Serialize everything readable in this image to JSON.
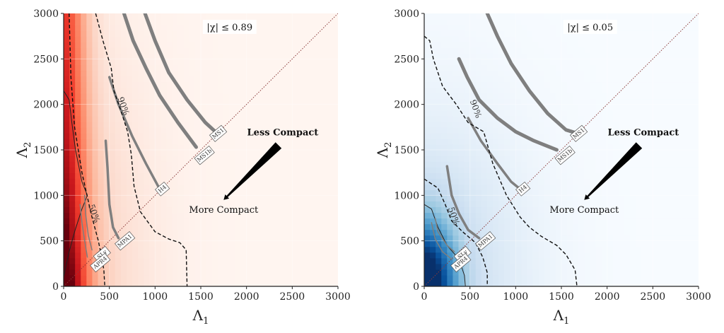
{
  "chart_data": [
    {
      "type": "heatmap",
      "colormap": "reds",
      "xlabel": "Λ",
      "xlabel_sub": "1",
      "ylabel": "Λ",
      "ylabel_sub": "2",
      "xlim": [
        0,
        3000
      ],
      "ylim": [
        0,
        3000
      ],
      "xticks": [
        "0",
        "500",
        "1000",
        "1500",
        "2000",
        "2500",
        "3000"
      ],
      "yticks": [
        "0",
        "500",
        "1000",
        "1500",
        "2000",
        "2500",
        "3000"
      ],
      "spin_label": "|χ| ≤ 0.89",
      "arrow_start_label": "Less Compact",
      "arrow_end_label": "More Compact",
      "arrow_from": [
        2350,
        1550
      ],
      "arrow_to": [
        1750,
        950
      ],
      "contours": [
        {
          "label": "50%",
          "label_at": [
            330,
            800
          ],
          "points": [
            [
              60,
              3000
            ],
            [
              80,
              2300
            ],
            [
              120,
              1750
            ],
            [
              200,
              1250
            ],
            [
              300,
              800
            ],
            [
              380,
              500
            ],
            [
              420,
              300
            ],
            [
              440,
              180
            ],
            [
              450,
              0
            ]
          ]
        },
        {
          "label": "90%",
          "label_at": [
            650,
            1980
          ],
          "points": [
            [
              350,
              3000
            ],
            [
              430,
              2700
            ],
            [
              520,
              2400
            ],
            [
              550,
              2150
            ],
            [
              620,
              1950
            ],
            [
              700,
              1700
            ],
            [
              740,
              1450
            ],
            [
              770,
              1100
            ],
            [
              840,
              820
            ],
            [
              1000,
              600
            ],
            [
              1150,
              520
            ],
            [
              1270,
              480
            ],
            [
              1340,
              400
            ],
            [
              1350,
              0
            ]
          ]
        }
      ],
      "contours_inner": [
        {
          "points": [
            [
              0,
              2150
            ],
            [
              60,
              2050
            ],
            [
              90,
              1800
            ],
            [
              130,
              1500
            ],
            [
              200,
              1150
            ],
            [
              260,
              1000
            ]
          ]
        },
        {
          "points": [
            [
              260,
              1000
            ],
            [
              200,
              850
            ],
            [
              120,
              600
            ],
            [
              60,
              380
            ],
            [
              20,
              200
            ],
            [
              0,
              100
            ]
          ]
        }
      ],
      "eos_curves": [
        {
          "name": "MS1",
          "points": [
            [
              890,
              3000
            ],
            [
              1000,
              2700
            ],
            [
              1150,
              2350
            ],
            [
              1350,
              2050
            ],
            [
              1550,
              1800
            ],
            [
              1680,
              1680
            ]
          ],
          "label_at": [
            1690,
            1680
          ]
        },
        {
          "name": "MS1b",
          "points": [
            [
              660,
              3000
            ],
            [
              760,
              2700
            ],
            [
              900,
              2400
            ],
            [
              1050,
              2100
            ],
            [
              1250,
              1800
            ],
            [
              1450,
              1530
            ]
          ],
          "label_at": [
            1540,
            1440
          ]
        },
        {
          "name": "H4",
          "points": [
            [
              500,
              2300
            ],
            [
              600,
              2000
            ],
            [
              750,
              1650
            ],
            [
              900,
              1350
            ],
            [
              1050,
              1070
            ]
          ],
          "label_at": [
            1080,
            1070
          ]
        },
        {
          "name": "MPA1",
          "points": [
            [
              460,
              1600
            ],
            [
              480,
              1300
            ],
            [
              500,
              900
            ],
            [
              540,
              650
            ],
            [
              600,
              530
            ]
          ],
          "label_at": [
            670,
            500
          ]
        },
        {
          "name": "SLy",
          "points": [
            [
              230,
              1000
            ],
            [
              240,
              800
            ],
            [
              270,
              560
            ],
            [
              310,
              400
            ]
          ],
          "label_at": [
            420,
            350
          ]
        },
        {
          "name": "APR4",
          "points": [
            [
              180,
              900
            ],
            [
              200,
              700
            ],
            [
              230,
              500
            ],
            [
              260,
              320
            ]
          ],
          "label_at": [
            400,
            260
          ]
        }
      ]
    },
    {
      "type": "heatmap",
      "colormap": "blues",
      "xlabel": "Λ",
      "xlabel_sub": "1",
      "ylabel": "Λ",
      "ylabel_sub": "2",
      "xlim": [
        0,
        3000
      ],
      "ylim": [
        0,
        3000
      ],
      "xticks": [
        "0",
        "500",
        "1000",
        "1500",
        "2000",
        "2500",
        "3000"
      ],
      "yticks": [
        "0",
        "500",
        "1000",
        "1500",
        "2000",
        "2500",
        "3000"
      ],
      "spin_label": "|χ| ≤ 0.05",
      "arrow_start_label": "Less Compact",
      "arrow_end_label": "More Compact",
      "arrow_from": [
        2350,
        1550
      ],
      "arrow_to": [
        1750,
        950
      ],
      "contours": [
        {
          "label": "50%",
          "label_at": [
            320,
            770
          ],
          "points": [
            [
              0,
              1180
            ],
            [
              150,
              1080
            ],
            [
              230,
              900
            ],
            [
              300,
              720
            ],
            [
              420,
              600
            ],
            [
              560,
              480
            ],
            [
              640,
              320
            ],
            [
              690,
              150
            ],
            [
              690,
              0
            ]
          ]
        },
        {
          "label": "90%",
          "label_at": [
            560,
            1950
          ],
          "points": [
            [
              0,
              2750
            ],
            [
              60,
              2700
            ],
            [
              100,
              2500
            ],
            [
              200,
              2200
            ],
            [
              350,
              2000
            ],
            [
              480,
              1800
            ],
            [
              650,
              1700
            ],
            [
              750,
              1350
            ],
            [
              900,
              1000
            ],
            [
              1050,
              760
            ],
            [
              1150,
              650
            ],
            [
              1280,
              550
            ],
            [
              1450,
              450
            ],
            [
              1550,
              350
            ],
            [
              1650,
              180
            ],
            [
              1670,
              0
            ]
          ]
        }
      ],
      "contours_inner": [
        {
          "points": [
            [
              0,
              900
            ],
            [
              80,
              850
            ],
            [
              150,
              650
            ],
            [
              250,
              450
            ],
            [
              380,
              300
            ],
            [
              440,
              120
            ],
            [
              450,
              0
            ]
          ]
        }
      ],
      "eos_curves": [
        {
          "name": "MS1",
          "points": [
            [
              690,
              3000
            ],
            [
              800,
              2750
            ],
            [
              950,
              2450
            ],
            [
              1150,
              2150
            ],
            [
              1350,
              1900
            ],
            [
              1550,
              1720
            ],
            [
              1680,
              1680
            ]
          ],
          "label_at": [
            1690,
            1680
          ]
        },
        {
          "name": "MS1b",
          "points": [
            [
              380,
              2500
            ],
            [
              470,
              2300
            ],
            [
              600,
              2050
            ],
            [
              800,
              1850
            ],
            [
              1000,
              1700
            ],
            [
              1200,
              1600
            ],
            [
              1450,
              1500
            ]
          ],
          "label_at": [
            1540,
            1440
          ]
        },
        {
          "name": "H4",
          "points": [
            [
              480,
              1850
            ],
            [
              620,
              1600
            ],
            [
              800,
              1350
            ],
            [
              950,
              1150
            ],
            [
              1060,
              1060
            ]
          ],
          "label_at": [
            1080,
            1070
          ]
        },
        {
          "name": "MPA1",
          "points": [
            [
              250,
              1320
            ],
            [
              300,
              1000
            ],
            [
              380,
              800
            ],
            [
              480,
              620
            ],
            [
              600,
              530
            ]
          ],
          "label_at": [
            670,
            500
          ]
        },
        {
          "name": "SLy",
          "points": [
            [
              120,
              750
            ],
            [
              150,
              600
            ],
            [
              250,
              450
            ],
            [
              330,
              380
            ]
          ],
          "label_at": [
            420,
            350
          ]
        },
        {
          "name": "APR4",
          "points": [
            [
              80,
              700
            ],
            [
              120,
              520
            ],
            [
              200,
              380
            ],
            [
              300,
              300
            ]
          ],
          "label_at": [
            400,
            260
          ]
        }
      ]
    }
  ],
  "colors": {
    "reds": [
      "#fff5f0",
      "#fcdccf",
      "#fcbba1",
      "#fc9272",
      "#fb6a4a",
      "#ef3b2c",
      "#cb181d",
      "#a50f15",
      "#67000d"
    ],
    "blues": [
      "#f7fbff",
      "#deebf7",
      "#c6dbef",
      "#9ecae1",
      "#6baed6",
      "#4292c6",
      "#2171b5",
      "#08519c",
      "#08306b"
    ],
    "eos_line": "#7f7f7f",
    "diagonal": "#8b3a3a",
    "contour": "#111111",
    "grid": "#f2e6e6"
  }
}
